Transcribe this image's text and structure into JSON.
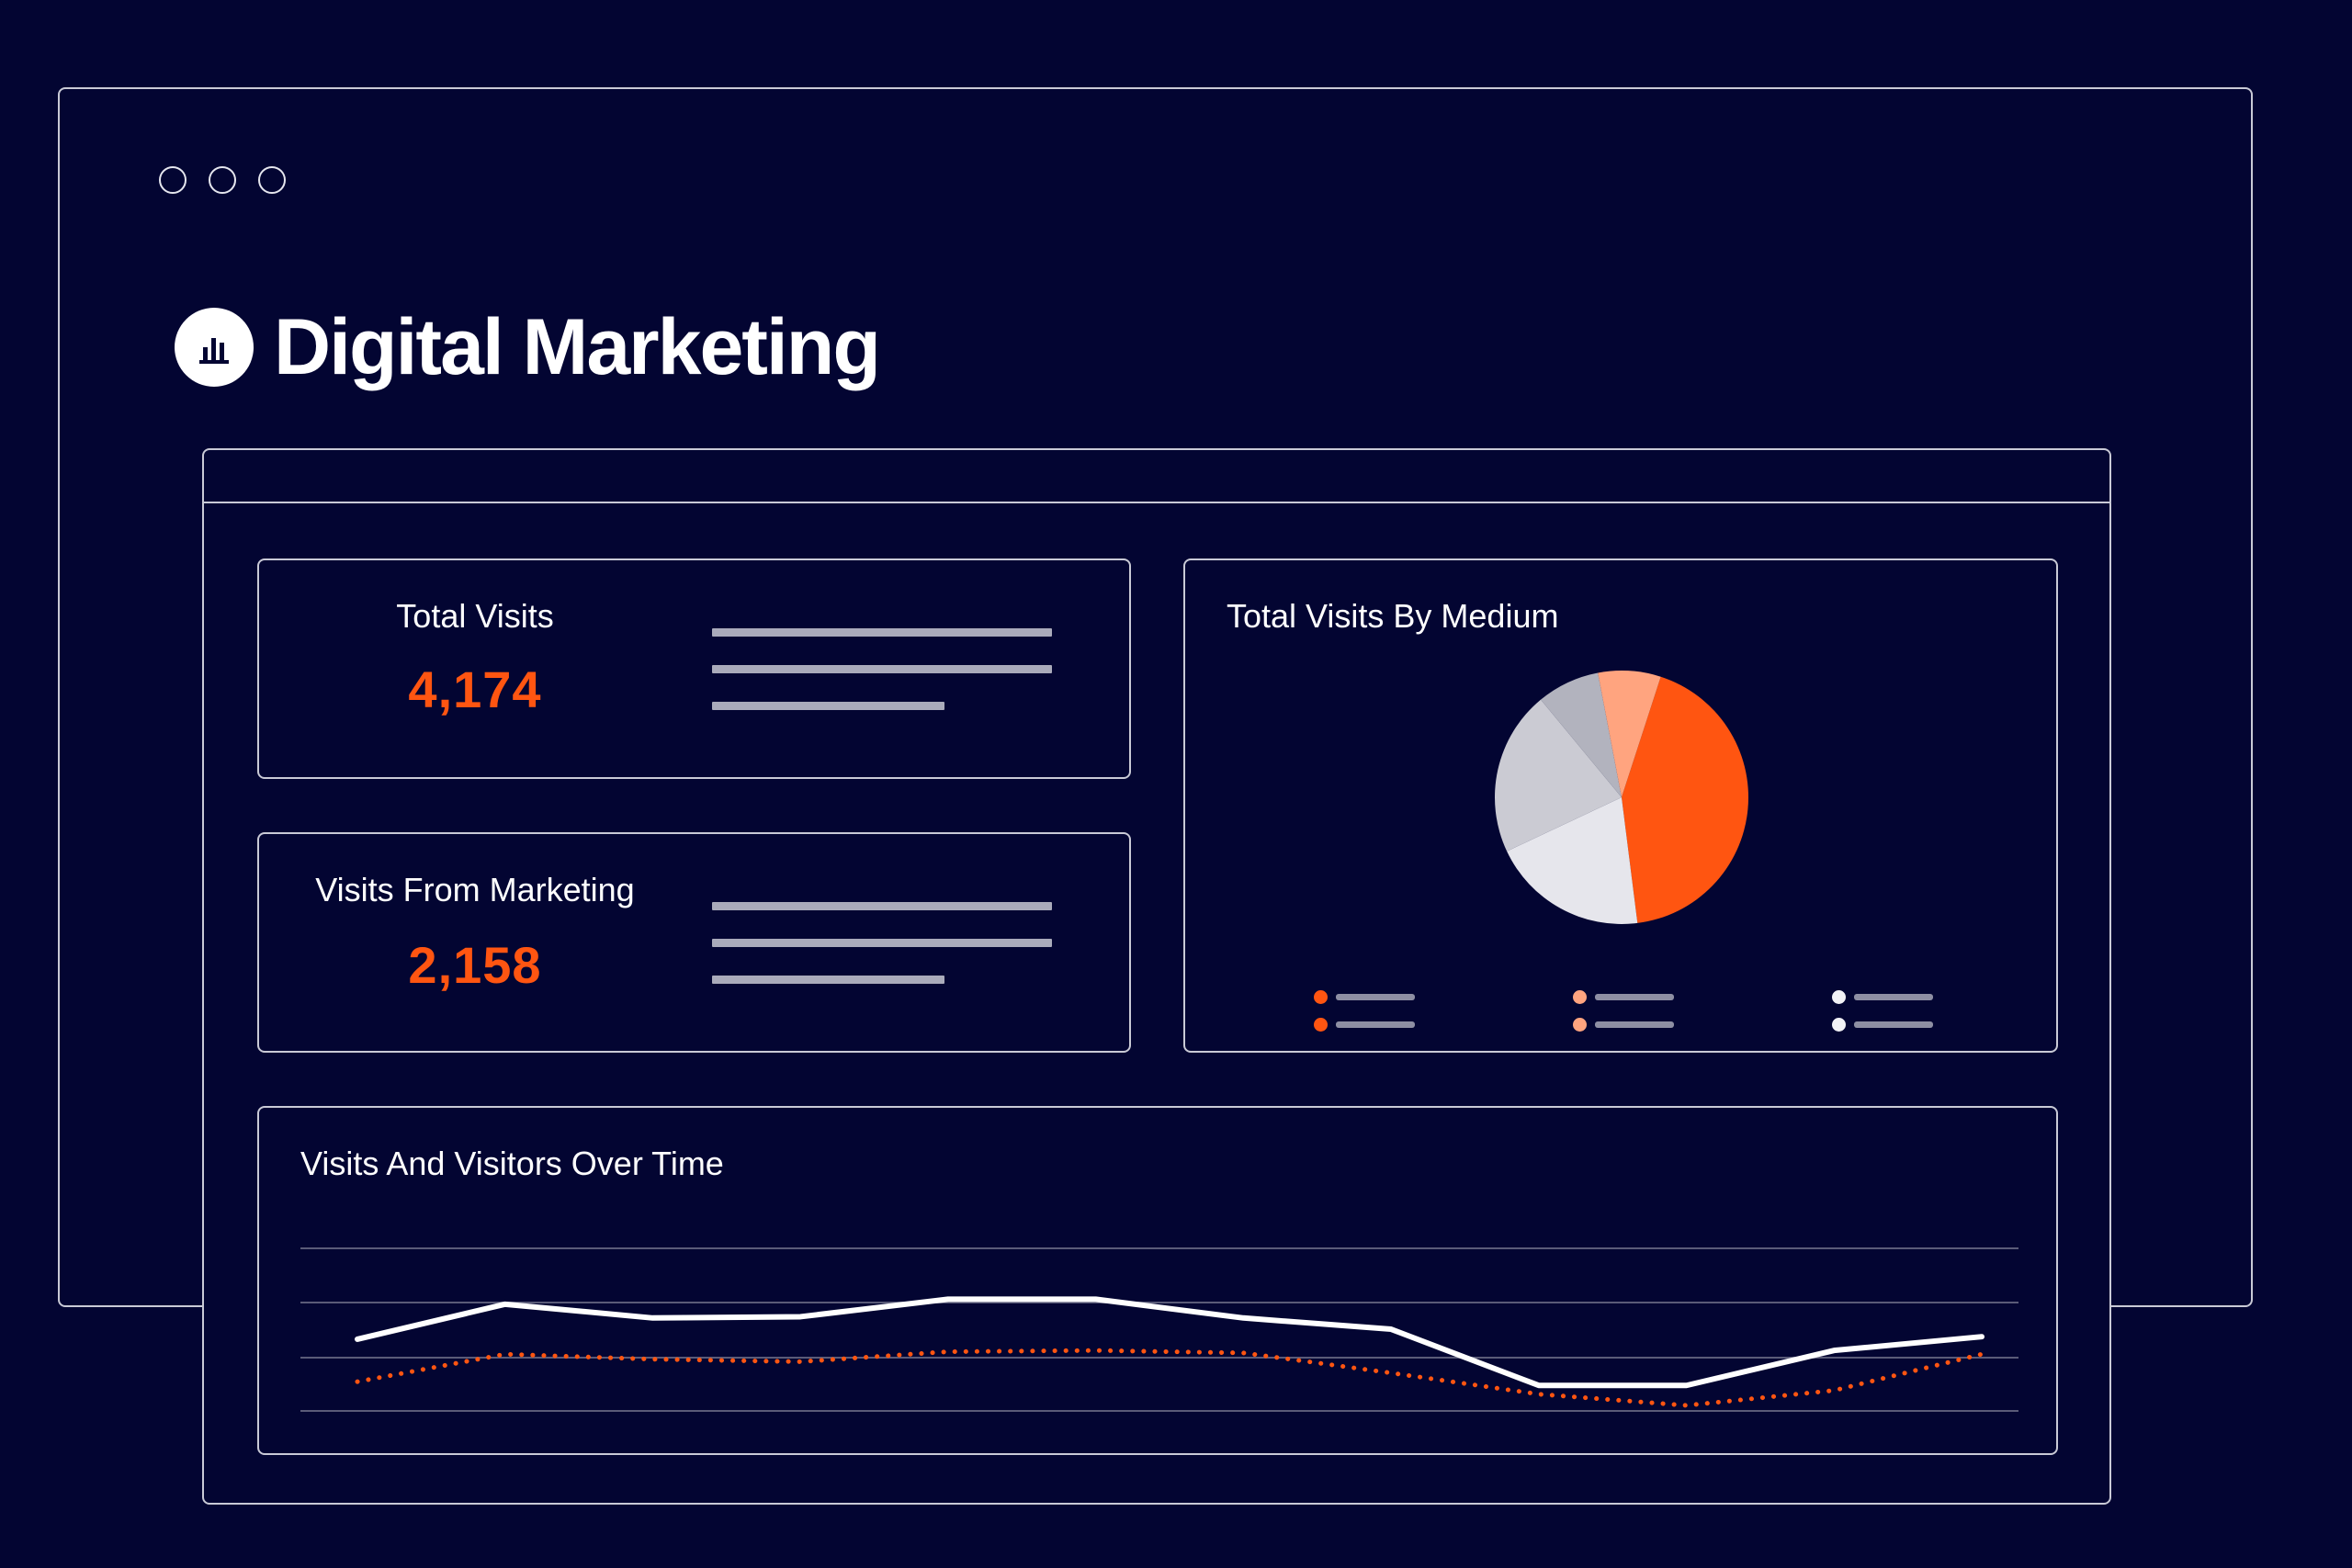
{
  "window": {
    "dots": [
      "window-dot",
      "window-dot",
      "window-dot"
    ]
  },
  "brand": {
    "title": "Digital Marketing",
    "icon": "bar-chart-icon"
  },
  "kpis": [
    {
      "label": "Total Visits",
      "value": "4,174"
    },
    {
      "label": "Visits From Marketing",
      "value": "2,158"
    }
  ],
  "colors": {
    "background": "#030532",
    "accent": "#ff5511",
    "border": "#c9cad6",
    "text": "#ffffff"
  },
  "pie_card": {
    "title": "Total Visits By Medium"
  },
  "line_card": {
    "title": "Visits And Visitors Over Time"
  },
  "chart_data": [
    {
      "type": "pie",
      "title": "Total Visits By Medium",
      "slices": [
        {
          "value": 43,
          "color": "#ff5511"
        },
        {
          "value": 20,
          "color": "#e6e6ec"
        },
        {
          "value": 21,
          "color": "#cbcbd3"
        },
        {
          "value": 8,
          "color": "#b2b3be"
        },
        {
          "value": 8,
          "color": "#ffa47f"
        }
      ],
      "legend_colors": [
        "#ff5511",
        "#ff5511",
        "#ffa47f",
        "#ffa47f",
        "#f2f2f6",
        "#f2f2f6"
      ]
    },
    {
      "type": "line",
      "title": "Visits And Visitors Over Time",
      "x": [
        1,
        2,
        3,
        4,
        5,
        6,
        7,
        8,
        9,
        10,
        11,
        12
      ],
      "ylim": [
        0,
        100
      ],
      "grid": true,
      "series": [
        {
          "style": "solid",
          "color": "#ffffff",
          "values": [
            53,
            81,
            70,
            71,
            85,
            85,
            70,
            61,
            16,
            16,
            44,
            55
          ]
        },
        {
          "style": "dotted",
          "color": "#ff5511",
          "values": [
            19,
            41,
            37,
            35,
            43,
            44,
            42,
            26,
            9,
            0,
            12,
            41
          ]
        }
      ]
    }
  ]
}
